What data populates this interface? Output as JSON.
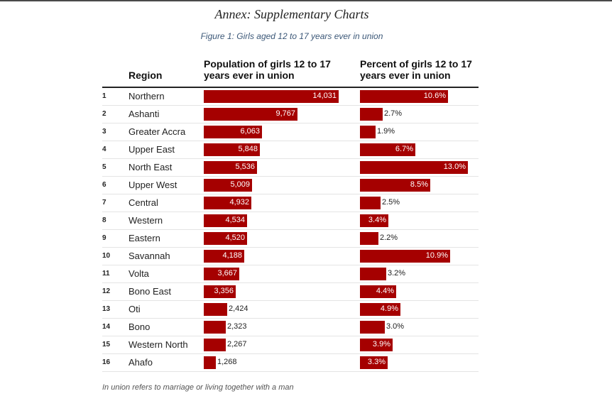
{
  "header": {
    "annex_title": "Annex: Supplementary Charts",
    "figure_caption": "Figure 1: Girls aged 12 to 17 years ever in union"
  },
  "table": {
    "col_region": "Region",
    "col_population": "Population of girls 12 to 17 years ever in union",
    "col_percent": "Percent of girls 12 to 17 years ever in union"
  },
  "footnote": "In union refers to marriage or living together with a man",
  "colors": {
    "bar": "#a50000"
  },
  "chart_data": {
    "type": "bar",
    "title": "Girls aged 12 to 17 years ever in union",
    "categories": [
      "Northern",
      "Ashanti",
      "Greater Accra",
      "Upper East",
      "North East",
      "Upper West",
      "Central",
      "Western",
      "Eastern",
      "Savannah",
      "Volta",
      "Bono East",
      "Oti",
      "Bono",
      "Western North",
      "Ahafo"
    ],
    "ranks": [
      "1",
      "2",
      "3",
      "4",
      "5",
      "6",
      "7",
      "8",
      "9",
      "10",
      "11",
      "12",
      "13",
      "14",
      "15",
      "16"
    ],
    "series": [
      {
        "name": "Population of girls 12 to 17 years ever in union",
        "values": [
          14031,
          9767,
          6063,
          5848,
          5536,
          5009,
          4932,
          4534,
          4520,
          4188,
          3667,
          3356,
          2424,
          2323,
          2267,
          1268
        ],
        "labels": [
          "14,031",
          "9,767",
          "6,063",
          "5,848",
          "5,536",
          "5,009",
          "4,932",
          "4,534",
          "4,520",
          "4,188",
          "3,667",
          "3,356",
          "2,424",
          "2,323",
          "2,267",
          "1,268"
        ]
      },
      {
        "name": "Percent of girls 12 to 17 years ever in union",
        "values": [
          10.6,
          2.7,
          1.9,
          6.7,
          13.0,
          8.5,
          2.5,
          3.4,
          2.2,
          10.9,
          3.2,
          4.4,
          4.9,
          3.0,
          3.9,
          3.3
        ],
        "labels": [
          "10.6%",
          "2.7%",
          "1.9%",
          "6.7%",
          "13.0%",
          "8.5%",
          "2.5%",
          "3.4%",
          "2.2%",
          "10.9%",
          "3.2%",
          "4.4%",
          "4.9%",
          "3.0%",
          "3.9%",
          "3.3%"
        ]
      }
    ]
  }
}
